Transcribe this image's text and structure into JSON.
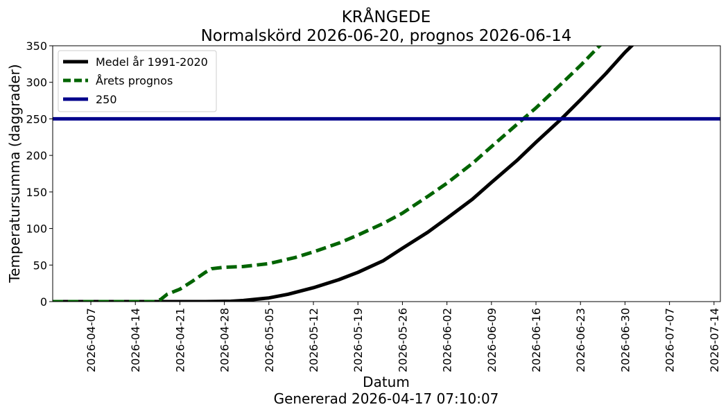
{
  "chart_data": {
    "type": "line",
    "title": "KRÅNGEDE",
    "subtitle": "Normalskörd 2026-06-20, prognos 2026-06-14",
    "xlabel": "Datum",
    "footer": "Genererad 2026-04-17 07:10:07",
    "ylabel": "Temperatursumma (daggrader)",
    "xlim": [
      "2026-04-01",
      "2026-07-15"
    ],
    "ylim": [
      0,
      350
    ],
    "yticks": [
      0,
      50,
      100,
      150,
      200,
      250,
      300,
      350
    ],
    "xticks": [
      "2026-04-07",
      "2026-04-14",
      "2026-04-21",
      "2026-04-28",
      "2026-05-05",
      "2026-05-12",
      "2026-05-19",
      "2026-05-26",
      "2026-06-02",
      "2026-06-09",
      "2026-06-16",
      "2026-06-23",
      "2026-06-30",
      "2026-07-07",
      "2026-07-14"
    ],
    "grid": false,
    "legend_position": "upper-left",
    "series": [
      {
        "name": "Medel år 1991-2020",
        "color": "#000000",
        "style": "solid",
        "points": [
          [
            "2026-04-01",
            0
          ],
          [
            "2026-04-25",
            0
          ],
          [
            "2026-04-29",
            0.5
          ],
          [
            "2026-05-01",
            1.5
          ],
          [
            "2026-05-05",
            5
          ],
          [
            "2026-05-08",
            10
          ],
          [
            "2026-05-12",
            19
          ],
          [
            "2026-05-16",
            30
          ],
          [
            "2026-05-19",
            40
          ],
          [
            "2026-05-23",
            56
          ],
          [
            "2026-05-26",
            73
          ],
          [
            "2026-05-30",
            95
          ],
          [
            "2026-06-02",
            114
          ],
          [
            "2026-06-06",
            140
          ],
          [
            "2026-06-09",
            163
          ],
          [
            "2026-06-13",
            193
          ],
          [
            "2026-06-16",
            218
          ],
          [
            "2026-06-20",
            250
          ],
          [
            "2026-06-23",
            276
          ],
          [
            "2026-06-27",
            312
          ],
          [
            "2026-06-30",
            341
          ],
          [
            "2026-07-02",
            358
          ]
        ]
      },
      {
        "name": "Årets prognos",
        "color": "#006400",
        "style": "dashed",
        "points": [
          [
            "2026-04-01",
            0
          ],
          [
            "2026-04-17",
            0
          ],
          [
            "2026-04-18",
            3
          ],
          [
            "2026-04-19",
            10
          ],
          [
            "2026-04-21",
            17
          ],
          [
            "2026-04-23",
            28
          ],
          [
            "2026-04-25",
            40
          ],
          [
            "2026-04-26",
            45
          ],
          [
            "2026-04-28",
            47
          ],
          [
            "2026-05-01",
            48
          ],
          [
            "2026-05-05",
            52
          ],
          [
            "2026-05-09",
            60
          ],
          [
            "2026-05-12",
            68
          ],
          [
            "2026-05-16",
            80
          ],
          [
            "2026-05-19",
            91
          ],
          [
            "2026-05-23",
            107
          ],
          [
            "2026-05-26",
            121
          ],
          [
            "2026-05-30",
            144
          ],
          [
            "2026-06-02",
            162
          ],
          [
            "2026-06-06",
            189
          ],
          [
            "2026-06-09",
            212
          ],
          [
            "2026-06-14",
            250
          ],
          [
            "2026-06-16",
            265
          ],
          [
            "2026-06-20",
            298
          ],
          [
            "2026-06-23",
            323
          ],
          [
            "2026-06-26",
            350
          ],
          [
            "2026-06-27",
            358
          ]
        ]
      },
      {
        "name": "250",
        "color": "#00008b",
        "style": "solid",
        "points": [
          [
            "2026-04-01",
            250
          ],
          [
            "2026-07-15",
            250
          ]
        ]
      }
    ]
  }
}
